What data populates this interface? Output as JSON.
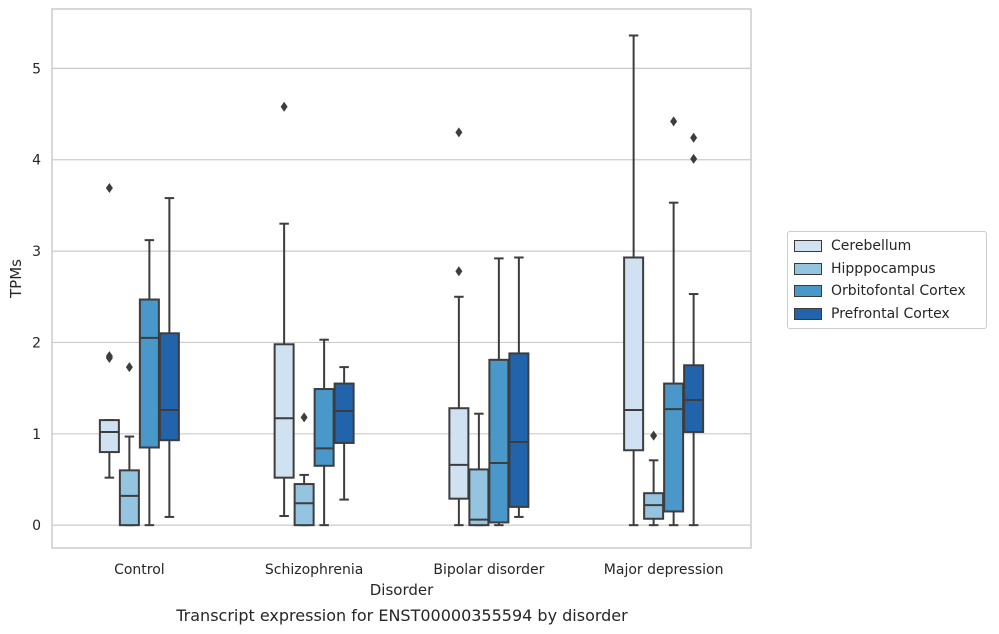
{
  "chart_data": {
    "type": "box",
    "caption": "Transcript expression for ENST00000355594 by disorder",
    "xlabel": "Disorder",
    "ylabel": "TPMs",
    "ylim": [
      -0.25,
      5.65
    ],
    "yticks": [
      0,
      1,
      2,
      3,
      4,
      5
    ],
    "grid": true,
    "legend_position": "right",
    "categories": [
      "Control",
      "Schizophrenia",
      "Bipolar disorder",
      "Major depression"
    ],
    "series": [
      {
        "name": "Cerebellum",
        "color": "#d0e1f2",
        "boxes": [
          {
            "whisker_low": 0.52,
            "q1": 0.8,
            "median": 1.02,
            "q3": 1.15,
            "whisker_high": 1.15,
            "outliers": [
              3.69,
              1.85,
              1.83
            ]
          },
          {
            "whisker_low": 0.1,
            "q1": 0.52,
            "median": 1.17,
            "q3": 1.98,
            "whisker_high": 3.3,
            "outliers": [
              4.58
            ]
          },
          {
            "whisker_low": 0.0,
            "q1": 0.29,
            "median": 0.66,
            "q3": 1.28,
            "whisker_high": 2.5,
            "outliers": [
              4.3,
              2.78
            ]
          },
          {
            "whisker_low": 0.0,
            "q1": 0.82,
            "median": 1.26,
            "q3": 2.93,
            "whisker_high": 5.36,
            "outliers": []
          }
        ]
      },
      {
        "name": "Hipppocampus",
        "color": "#94c4df",
        "boxes": [
          {
            "whisker_low": 0.0,
            "q1": 0.0,
            "median": 0.32,
            "q3": 0.6,
            "whisker_high": 0.97,
            "outliers": [
              1.73
            ]
          },
          {
            "whisker_low": 0.0,
            "q1": 0.0,
            "median": 0.24,
            "q3": 0.45,
            "whisker_high": 0.55,
            "outliers": [
              1.18
            ]
          },
          {
            "whisker_low": 0.0,
            "q1": 0.0,
            "median": 0.06,
            "q3": 0.61,
            "whisker_high": 1.22,
            "outliers": []
          },
          {
            "whisker_low": 0.0,
            "q1": 0.07,
            "median": 0.22,
            "q3": 0.35,
            "whisker_high": 0.71,
            "outliers": [
              0.98
            ]
          }
        ]
      },
      {
        "name": "Orbitofontal Cortex",
        "color": "#4a98c9",
        "boxes": [
          {
            "whisker_low": 0.0,
            "q1": 0.85,
            "median": 2.05,
            "q3": 2.47,
            "whisker_high": 3.12,
            "outliers": []
          },
          {
            "whisker_low": 0.0,
            "q1": 0.65,
            "median": 0.84,
            "q3": 1.49,
            "whisker_high": 2.03,
            "outliers": []
          },
          {
            "whisker_low": 0.0,
            "q1": 0.03,
            "median": 0.68,
            "q3": 1.81,
            "whisker_high": 2.92,
            "outliers": []
          },
          {
            "whisker_low": 0.0,
            "q1": 0.15,
            "median": 1.27,
            "q3": 1.55,
            "whisker_high": 3.53,
            "outliers": [
              4.42
            ]
          }
        ]
      },
      {
        "name": "Prefrontal Cortex",
        "color": "#2164ab",
        "boxes": [
          {
            "whisker_low": 0.09,
            "q1": 0.93,
            "median": 1.26,
            "q3": 2.1,
            "whisker_high": 3.58,
            "outliers": []
          },
          {
            "whisker_low": 0.28,
            "q1": 0.9,
            "median": 1.25,
            "q3": 1.55,
            "whisker_high": 1.73,
            "outliers": []
          },
          {
            "whisker_low": 0.09,
            "q1": 0.2,
            "median": 0.91,
            "q3": 1.88,
            "whisker_high": 2.93,
            "outliers": []
          },
          {
            "whisker_low": 0.0,
            "q1": 1.02,
            "median": 1.37,
            "q3": 1.75,
            "whisker_high": 2.53,
            "outliers": [
              4.24,
              4.01
            ]
          }
        ]
      }
    ]
  }
}
